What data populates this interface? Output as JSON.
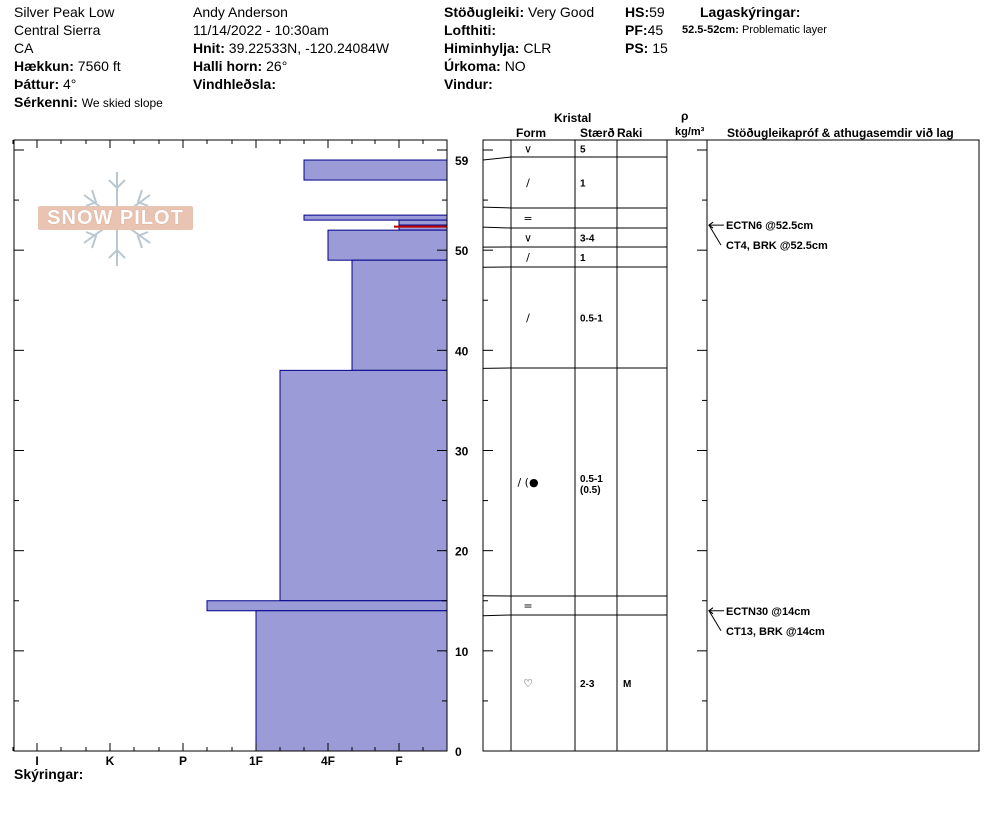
{
  "header": {
    "location": "Silver Peak Low",
    "region": "Central Sierra",
    "state": "CA",
    "elevation_label": "Hækkun:",
    "elevation_value": "7560 ft",
    "aspect_label": "Þáttur:",
    "aspect_value": "4°",
    "notes_label": "Sérkenni:",
    "notes_value": "We skied slope",
    "observer": "Andy Anderson",
    "datetime": "11/14/2022 - 10:30am",
    "coords_label": "Hnit:",
    "coords_value": "39.22533N, -120.24084W",
    "slope_label": "Halli horn:",
    "slope_value": "26°",
    "wind_loading_label": "Vindhleðsla:",
    "stability_label": "Stöðugleiki:",
    "stability_value": "Very Good",
    "air_temp_label": "Lofthiti:",
    "sky_label": "Himinhylja:",
    "sky_value": "CLR",
    "precip_label": "Úrkoma:",
    "precip_value": "NO",
    "wind_label": "Vindur:",
    "hs_label": "HS:",
    "hs_value": "59",
    "pf_label": "PF:",
    "pf_value": "45",
    "ps_label": "PS:",
    "ps_value": "15",
    "layer_notes_label": "Lagaskýringar:",
    "layer_note_range": "52.5-52cm:",
    "layer_note_text": "Problematic layer"
  },
  "columns": {
    "crystal": "Kristal",
    "form": "Form",
    "size": "Stærð",
    "moisture": "Raki",
    "rho": "ρ",
    "density_unit": "kg/m³",
    "tests": "Stöðugleikapróf & athugasemdir við lag"
  },
  "footer": {
    "comments_label": "Skýringar:"
  },
  "logo": {
    "text": "SNOW PILOT"
  },
  "colors": {
    "hardness_fill": "#9b9bd7",
    "hardness_stroke": "#00008b",
    "problem_layer": "#c00000"
  },
  "chart_data": {
    "type": "bar",
    "y_axis": {
      "min": 0,
      "max": 60,
      "ticks": [
        "0",
        "10",
        "20",
        "30",
        "40",
        "50",
        "59"
      ]
    },
    "x_axis": {
      "categories": [
        "I",
        "K",
        "P",
        "1F",
        "4F",
        "F"
      ]
    },
    "hardness_layers": [
      {
        "bottom": 57,
        "top": 59,
        "hardness": "4F-"
      },
      {
        "bottom": 53,
        "top": 53.5,
        "hardness": "4F-"
      },
      {
        "bottom": 52.5,
        "top": 53,
        "hardness": "F"
      },
      {
        "bottom": 52,
        "top": 52.5,
        "hardness": "F"
      },
      {
        "bottom": 49,
        "top": 52,
        "hardness": "4F"
      },
      {
        "bottom": 38,
        "top": 49,
        "hardness": "4F+"
      },
      {
        "bottom": 15,
        "top": 38,
        "hardness": "1F+"
      },
      {
        "bottom": 14,
        "top": 15,
        "hardness": "P+"
      },
      {
        "bottom": 0,
        "top": 14,
        "hardness": "1F"
      }
    ],
    "problem_layer": {
      "bottom": 52,
      "top": 52.5
    },
    "crystal_layers": [
      {
        "bottom": 59,
        "top": 60,
        "form": "V",
        "size": "5",
        "moisture": ""
      },
      {
        "bottom": 54.3,
        "top": 59,
        "form": "/",
        "size": "1",
        "moisture": ""
      },
      {
        "bottom": 52.3,
        "top": 54.3,
        "form": "=",
        "size": "",
        "moisture": ""
      },
      {
        "bottom": 50.3,
        "top": 52.3,
        "form": "V",
        "size": "3-4",
        "moisture": ""
      },
      {
        "bottom": 48.3,
        "top": 50.3,
        "form": "/",
        "size": "1",
        "moisture": ""
      },
      {
        "bottom": 38.2,
        "top": 48.3,
        "form": "/",
        "size": "0.5-1",
        "moisture": ""
      },
      {
        "bottom": 15.5,
        "top": 38.2,
        "form": "/ (●",
        "size": "0.5-1",
        "size2": "(0.5)",
        "moisture": ""
      },
      {
        "bottom": 13.5,
        "top": 15.5,
        "form": "=",
        "size": "",
        "moisture": ""
      },
      {
        "bottom": 0,
        "top": 13.5,
        "form": "♡",
        "size": "2-3",
        "moisture": "M"
      }
    ],
    "stability_tests": [
      {
        "label": "ECTN6 @52.5cm",
        "depth": 52.5
      },
      {
        "label": "CT4, BRK @52.5cm",
        "depth": 52.5
      },
      {
        "label": "ECTN30 @14cm",
        "depth": 14
      },
      {
        "label": "CT13, BRK @14cm",
        "depth": 14
      }
    ]
  }
}
